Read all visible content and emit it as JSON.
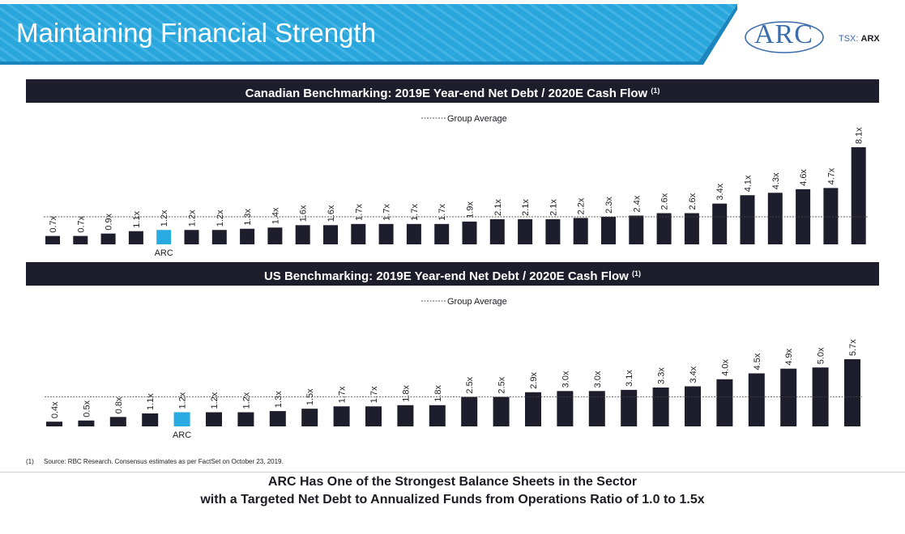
{
  "slide": {
    "title": "Maintaining Financial Strength",
    "logo_text": "ARC",
    "ticker_prefix": "TSX:",
    "ticker_symbol": "ARX"
  },
  "colors": {
    "banner": "#29a6dc",
    "banner_dark": "#1b86bd",
    "bar": "#1e1d2b",
    "highlight": "#29abe2",
    "header_bg": "#1e1d2b"
  },
  "charts": [
    {
      "header": "Canadian Benchmarking: 2019E Year-end Net Debt / 2020E Cash Flow",
      "footnote_ref": "(1)",
      "legend": "Group Average"
    },
    {
      "header": "US Benchmarking: 2019E Year-end Net Debt / 2020E Cash Flow",
      "footnote_ref": "(1)",
      "legend": "Group Average"
    }
  ],
  "chart_data": [
    {
      "type": "bar",
      "values": [
        0.7,
        0.7,
        0.9,
        1.1,
        1.2,
        1.2,
        1.2,
        1.3,
        1.4,
        1.6,
        1.6,
        1.7,
        1.7,
        1.7,
        1.7,
        1.9,
        2.1,
        2.1,
        2.1,
        2.2,
        2.3,
        2.4,
        2.6,
        2.6,
        3.4,
        4.1,
        4.3,
        4.6,
        4.7,
        8.1
      ],
      "labels": [
        "0.7x",
        "0.7x",
        "0.9x",
        "1.1x",
        "1.2x",
        "1.2x",
        "1.2x",
        "1.3x",
        "1.4x",
        "1.6x",
        "1.6x",
        "1.7x",
        "1.7x",
        "1.7x",
        "1.7x",
        "1.9x",
        "2.1x",
        "2.1x",
        "2.1x",
        "2.2x",
        "2.3x",
        "2.4x",
        "2.6x",
        "2.6x",
        "3.4x",
        "4.1x",
        "4.3x",
        "4.6x",
        "4.7x",
        "8.1x"
      ],
      "highlight_index": 4,
      "highlight_label": "ARC",
      "group_average": 2.3,
      "legend": "Group Average",
      "ylim": [
        0,
        8.1
      ]
    },
    {
      "type": "bar",
      "values": [
        0.4,
        0.5,
        0.8,
        1.1,
        1.2,
        1.2,
        1.2,
        1.3,
        1.5,
        1.7,
        1.7,
        1.8,
        1.8,
        2.5,
        2.5,
        2.9,
        3.0,
        3.0,
        3.1,
        3.3,
        3.4,
        4.0,
        4.5,
        4.9,
        5.0,
        5.7
      ],
      "labels": [
        "0.4x",
        "0.5x",
        "0.8x",
        "1.1x",
        "1.2x",
        "1.2x",
        "1.2x",
        "1.3x",
        "1.5x",
        "1.7x",
        "1.7x",
        "1.8x",
        "1.8x",
        "2.5x",
        "2.5x",
        "2.9x",
        "3.0x",
        "3.0x",
        "3.1x",
        "3.3x",
        "3.4x",
        "4.0x",
        "4.5x",
        "4.9x",
        "5.0x",
        "5.7x"
      ],
      "highlight_index": 4,
      "highlight_label": "ARC",
      "group_average": 2.5,
      "legend": "Group Average",
      "ylim": [
        0,
        5.7
      ]
    }
  ],
  "footnote": {
    "number": "(1)",
    "text": "Source: RBC Research. Consensus estimates as per FactSet on October 23, 2019."
  },
  "conclusion": {
    "line1": "ARC Has One of the Strongest Balance Sheets in the Sector",
    "line2": "with a Targeted Net Debt to Annualized Funds from Operations Ratio of 1.0 to 1.5x"
  }
}
